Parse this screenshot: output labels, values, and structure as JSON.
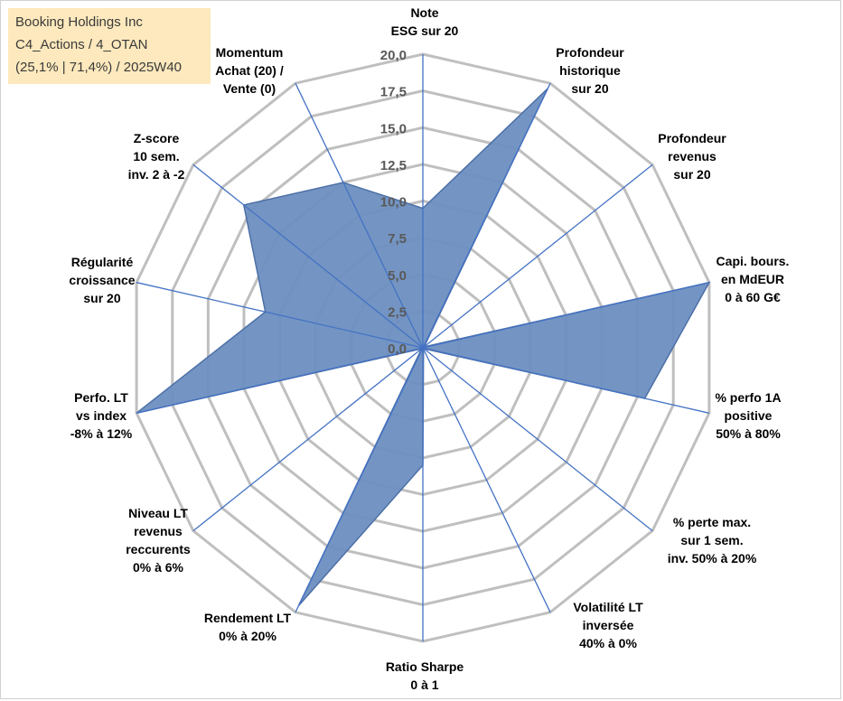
{
  "title_box": {
    "line1": "Booking Holdings Inc",
    "line2": "C4_Actions / 4_OTAN",
    "line3": "(25,1% | 71,4%) / 2025W40"
  },
  "chart_data": {
    "type": "radar",
    "title": "Booking Holdings Inc",
    "range": [
      0,
      20
    ],
    "ticks": [
      0,
      2.5,
      5,
      7.5,
      10,
      12.5,
      15,
      17.5,
      20
    ],
    "tick_labels": [
      "0,0",
      "2,5",
      "5,0",
      "7,5",
      "10,0",
      "12,5",
      "15,0",
      "17,5",
      "20,0"
    ],
    "axes": [
      {
        "label": [
          "Note",
          "ESG sur 20"
        ],
        "value": 9.5
      },
      {
        "label": [
          "Profondeur",
          "historique",
          "sur 20"
        ],
        "value": 19.6
      },
      {
        "label": [
          "Profondeur",
          "revenus",
          "sur 20"
        ],
        "value": 0.1
      },
      {
        "label": [
          "Capi. bours.",
          "en MdEUR",
          "0 à 60 G€"
        ],
        "value": 20
      },
      {
        "label": [
          "% perfo 1A",
          "positive",
          "50% à 80%"
        ],
        "value": 15.5
      },
      {
        "label": [
          "% perte max.",
          "sur 1 sem.",
          "inv. 50% à 20%"
        ],
        "value": 0.1
      },
      {
        "label": [
          "Volatilité LT",
          "inversée",
          "40% à 0%"
        ],
        "value": 0.1
      },
      {
        "label": [
          "Ratio Sharpe",
          "0 à 1"
        ],
        "value": 8.0
      },
      {
        "label": [
          "Rendement LT",
          "0% à 20%"
        ],
        "value": 19.5
      },
      {
        "label": [
          "Niveau LT",
          "revenus",
          "reccurents",
          "0% à 6%"
        ],
        "value": 0.1
      },
      {
        "label": [
          "Perfo. LT",
          "vs index",
          "-8% à 12%"
        ],
        "value": 20
      },
      {
        "label": [
          "Régularité",
          "croissance",
          "sur 20"
        ],
        "value": 11.0
      },
      {
        "label": [
          "Z-score",
          "10 sem.",
          "inv. 2 à -2"
        ],
        "value": 15.6
      },
      {
        "label": [
          "Momentum",
          "Achat (20) /",
          "Vente (0)"
        ],
        "value": 12.5
      }
    ],
    "series": [
      {
        "name": "Booking Holdings Inc",
        "fill": "#6d8fc0",
        "stroke": "#4c6fa7"
      }
    ],
    "grid_color": "#bfbfbf",
    "spoke_color": "#4472c4"
  }
}
